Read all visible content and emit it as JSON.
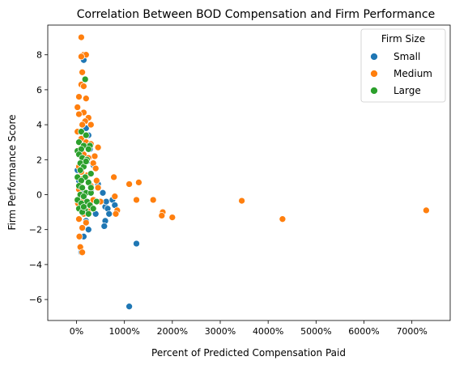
{
  "chart_data": {
    "type": "scatter",
    "title": "Correlation Between BOD Compensation and Firm Performance",
    "xlabel": "Percent of Predicted Compensation Paid",
    "ylabel": "Firm Performance Score",
    "xlim": [
      -0.6,
      7.8
    ],
    "ylim": [
      -7.2,
      9.7
    ],
    "x_ticks": [
      0,
      1,
      2,
      3,
      4,
      5,
      6,
      7
    ],
    "x_tick_labels": [
      "0%",
      "1000%",
      "2000%",
      "3000%",
      "4000%",
      "5000%",
      "6000%",
      "7000%"
    ],
    "y_ticks": [
      -6,
      -4,
      -2,
      0,
      2,
      4,
      6,
      8
    ],
    "y_tick_labels": [
      "−6",
      "−4",
      "−2",
      "0",
      "2",
      "4",
      "6",
      "8"
    ],
    "grid": false,
    "legend": {
      "title": "Firm Size",
      "placement": "top-right"
    },
    "series": [
      {
        "name": "Small",
        "color": "#1f77b4",
        "points": [
          [
            0.15,
            7.7
          ],
          [
            0.02,
            1.4
          ],
          [
            0.05,
            0.8
          ],
          [
            0.1,
            0.3
          ],
          [
            0.12,
            -0.5
          ],
          [
            0.18,
            -1.0
          ],
          [
            0.2,
            -1.5
          ],
          [
            0.25,
            -2.0
          ],
          [
            0.15,
            -2.4
          ],
          [
            0.1,
            -3.3
          ],
          [
            0.3,
            0.2
          ],
          [
            0.35,
            -0.8
          ],
          [
            0.4,
            -1.1
          ],
          [
            0.25,
            3.4
          ],
          [
            0.2,
            3.8
          ],
          [
            0.22,
            1.9
          ],
          [
            0.3,
            1.2
          ],
          [
            0.45,
            0.6
          ],
          [
            0.55,
            0.1
          ],
          [
            0.6,
            -0.7
          ],
          [
            0.62,
            -0.4
          ],
          [
            0.65,
            -0.8
          ],
          [
            0.68,
            -1.1
          ],
          [
            0.6,
            -1.5
          ],
          [
            0.58,
            -1.8
          ],
          [
            0.75,
            -0.3
          ],
          [
            0.8,
            -0.6
          ],
          [
            1.25,
            -2.8
          ],
          [
            1.1,
            -6.4
          ],
          [
            0.28,
            2.6
          ],
          [
            0.12,
            2.2
          ],
          [
            0.08,
            1.8
          ],
          [
            0.35,
            1.7
          ]
        ]
      },
      {
        "name": "Medium",
        "color": "#ff7f0e",
        "points": [
          [
            0.1,
            9.0
          ],
          [
            0.15,
            8.0
          ],
          [
            0.2,
            8.0
          ],
          [
            0.1,
            7.9
          ],
          [
            0.12,
            7.0
          ],
          [
            0.1,
            6.3
          ],
          [
            0.15,
            6.2
          ],
          [
            0.05,
            5.6
          ],
          [
            0.2,
            5.5
          ],
          [
            0.02,
            5.0
          ],
          [
            0.15,
            4.7
          ],
          [
            0.05,
            4.6
          ],
          [
            0.25,
            4.4
          ],
          [
            0.18,
            4.2
          ],
          [
            0.12,
            4.0
          ],
          [
            0.3,
            4.0
          ],
          [
            0.02,
            3.6
          ],
          [
            0.1,
            3.2
          ],
          [
            0.2,
            3.0
          ],
          [
            0.3,
            2.9
          ],
          [
            0.45,
            2.7
          ],
          [
            0.08,
            2.6
          ],
          [
            0.15,
            2.3
          ],
          [
            0.25,
            2.1
          ],
          [
            0.35,
            1.8
          ],
          [
            0.05,
            1.6
          ],
          [
            0.4,
            1.5
          ],
          [
            0.1,
            1.3
          ],
          [
            0.22,
            1.1
          ],
          [
            0.12,
            0.9
          ],
          [
            0.78,
            1.0
          ],
          [
            0.3,
            0.5
          ],
          [
            0.45,
            0.4
          ],
          [
            0.05,
            0.3
          ],
          [
            0.2,
            0.1
          ],
          [
            0.15,
            -0.2
          ],
          [
            0.03,
            -0.5
          ],
          [
            0.35,
            -0.3
          ],
          [
            0.5,
            -0.4
          ],
          [
            0.1,
            -0.7
          ],
          [
            0.25,
            -0.9
          ],
          [
            0.15,
            -1.1
          ],
          [
            0.05,
            -1.4
          ],
          [
            0.2,
            -1.6
          ],
          [
            0.12,
            -1.9
          ],
          [
            0.06,
            -2.4
          ],
          [
            0.08,
            -3.0
          ],
          [
            0.12,
            -3.3
          ],
          [
            1.1,
            0.6
          ],
          [
            1.3,
            0.7
          ],
          [
            0.8,
            -0.1
          ],
          [
            0.85,
            -0.9
          ],
          [
            0.82,
            -1.1
          ],
          [
            1.25,
            -0.3
          ],
          [
            1.6,
            -0.3
          ],
          [
            1.8,
            -1.0
          ],
          [
            1.78,
            -1.2
          ],
          [
            2.0,
            -1.3
          ],
          [
            3.45,
            -0.35
          ],
          [
            4.3,
            -1.4
          ],
          [
            7.3,
            -0.9
          ],
          [
            0.42,
            0.8
          ],
          [
            0.38,
            2.2
          ]
        ]
      },
      {
        "name": "Large",
        "color": "#2ca02c",
        "points": [
          [
            0.18,
            6.6
          ],
          [
            0.1,
            3.6
          ],
          [
            0.2,
            3.4
          ],
          [
            0.05,
            3.0
          ],
          [
            0.15,
            2.8
          ],
          [
            0.28,
            2.8
          ],
          [
            0.02,
            2.5
          ],
          [
            0.1,
            2.6
          ],
          [
            0.25,
            2.6
          ],
          [
            0.05,
            2.3
          ],
          [
            0.12,
            2.1
          ],
          [
            0.22,
            2.0
          ],
          [
            0.08,
            1.8
          ],
          [
            0.15,
            1.6
          ],
          [
            0.3,
            1.2
          ],
          [
            0.02,
            1.0
          ],
          [
            0.18,
            1.0
          ],
          [
            0.1,
            0.8
          ],
          [
            0.25,
            0.7
          ],
          [
            0.05,
            0.5
          ],
          [
            0.12,
            0.4
          ],
          [
            0.2,
            0.1
          ],
          [
            0.3,
            0.1
          ],
          [
            0.08,
            0.0
          ],
          [
            0.15,
            -0.1
          ],
          [
            0.02,
            -0.3
          ],
          [
            0.22,
            -0.4
          ],
          [
            0.1,
            -0.5
          ],
          [
            0.28,
            -0.6
          ],
          [
            0.05,
            -0.8
          ],
          [
            0.18,
            -0.9
          ],
          [
            0.12,
            -1.0
          ],
          [
            0.25,
            -1.1
          ],
          [
            0.35,
            -0.8
          ],
          [
            0.42,
            -0.4
          ],
          [
            0.15,
            -0.7
          ],
          [
            0.08,
            1.4
          ],
          [
            0.2,
            1.9
          ],
          [
            0.3,
            0.4
          ]
        ]
      }
    ]
  }
}
